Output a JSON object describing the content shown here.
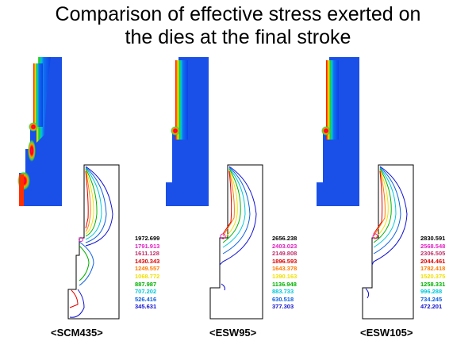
{
  "title_line1": "Comparison of effective stress exerted on",
  "title_line2": "the dies at the final stroke",
  "legend_colors": [
    "#000000",
    "#e020c0",
    "#c0306a",
    "#e00000",
    "#ff7a00",
    "#f0e000",
    "#00b000",
    "#00c8d8",
    "#1060e0",
    "#1010d0"
  ],
  "panels": [
    {
      "label": "<SCM435>",
      "values": [
        "1972.699",
        "1791.913",
        "1611.128",
        "1430.343",
        "1249.557",
        "1068.772",
        "887.987",
        "707.202",
        "526.416",
        "345.631"
      ]
    },
    {
      "label": "<ESW95>",
      "values": [
        "2656.238",
        "2403.023",
        "2149.808",
        "1896.593",
        "1643.378",
        "1390.163",
        "1136.948",
        "883.733",
        "630.518",
        "377.303"
      ]
    },
    {
      "label": "<ESW105>",
      "values": [
        "2830.591",
        "2568.548",
        "2306.505",
        "2044.461",
        "1782.418",
        "1520.375",
        "1258.331",
        "996.288",
        "734.245",
        "472.201"
      ]
    }
  ]
}
